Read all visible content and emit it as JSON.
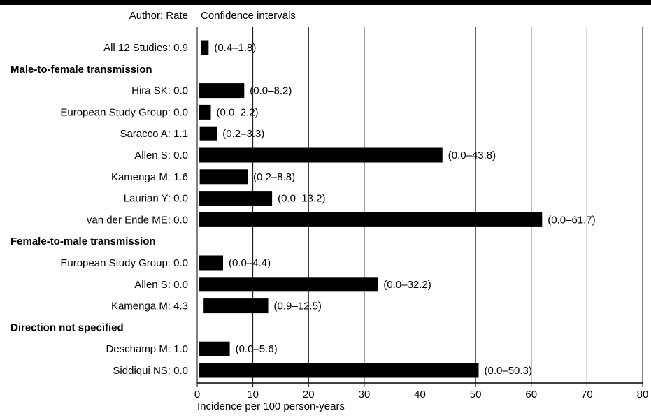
{
  "header": {
    "left": "Author: Rate",
    "right": "Confidence intervals"
  },
  "chart_data": {
    "type": "bar",
    "orientation": "horizontal",
    "xlabel": "Incidence per 100 person-years",
    "xlim": [
      0,
      80
    ],
    "xticks": [
      0,
      10,
      20,
      30,
      40,
      50,
      60,
      70,
      80
    ],
    "grid": "vertical lines at 10–80",
    "rows": [
      {
        "kind": "item",
        "label": "All 12 Studies: 0.9",
        "low": 0.4,
        "high": 1.8,
        "ci": "(0.4–1.8)"
      },
      {
        "kind": "group",
        "label": "Male-to-female transmission"
      },
      {
        "kind": "item",
        "label": "Hira SK: 0.0",
        "low": 0.0,
        "high": 8.2,
        "ci": "(0.0–8.2)"
      },
      {
        "kind": "item",
        "label": "European  Study Group: 0.0",
        "low": 0.0,
        "high": 2.2,
        "ci": "(0.0–2.2)"
      },
      {
        "kind": "item",
        "label": "Saracco A: 1.1",
        "low": 0.2,
        "high": 3.3,
        "ci": "(0.2–3.3)"
      },
      {
        "kind": "item",
        "label": "Allen S: 0.0",
        "low": 0.0,
        "high": 43.8,
        "ci": "(0.0–43.8)"
      },
      {
        "kind": "item",
        "label": "Kamenga M: 1.6",
        "low": 0.2,
        "high": 8.8,
        "ci": "(0.2–8.8)"
      },
      {
        "kind": "item",
        "label": "Laurian Y: 0.0",
        "low": 0.0,
        "high": 13.2,
        "ci": "(0.0–13.2)"
      },
      {
        "kind": "item",
        "label": "van der Ende ME: 0.0",
        "low": 0.0,
        "high": 61.7,
        "ci": "(0.0–61.7)"
      },
      {
        "kind": "group",
        "label": "Female-to-male transmission"
      },
      {
        "kind": "item",
        "label": "European  Study Group: 0.0",
        "low": 0.0,
        "high": 4.4,
        "ci": "(0.0–4.4)"
      },
      {
        "kind": "item",
        "label": "Allen S: 0.0",
        "low": 0.0,
        "high": 32.2,
        "ci": "(0.0–32.2)"
      },
      {
        "kind": "item",
        "label": "Kamenga M: 4.3",
        "low": 0.9,
        "high": 12.5,
        "ci": "(0.9–12.5)"
      },
      {
        "kind": "group",
        "label": "Direction not specified"
      },
      {
        "kind": "item",
        "label": "Deschamp M: 1.0",
        "low": 0.0,
        "high": 5.6,
        "ci": "(0.0–5.6)"
      },
      {
        "kind": "item",
        "label": "Siddiqui NS: 0.0",
        "low": 0.0,
        "high": 50.3,
        "ci": "(0.0–50.3)"
      }
    ]
  }
}
